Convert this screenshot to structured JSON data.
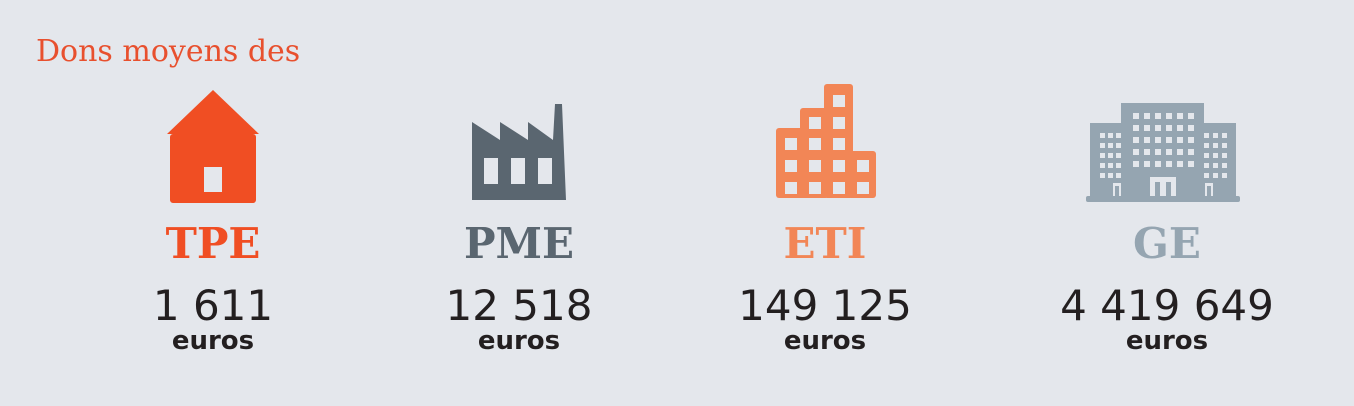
{
  "title": "Dons moyens des",
  "colors": {
    "background": "#e4e7ec",
    "title": "#e8502e",
    "tpe": "#f04e23",
    "pme": "#5a6670",
    "eti": "#f28656",
    "ge": "#95a5b1"
  },
  "categories": [
    {
      "label": "TPE",
      "value": "1 611",
      "unit": "euros",
      "icon": "house-icon",
      "color": "#f04e23"
    },
    {
      "label": "PME",
      "value": "12 518",
      "unit": "euros",
      "icon": "factory-icon",
      "color": "#5a6670"
    },
    {
      "label": "ETI",
      "value": "149 125",
      "unit": "euros",
      "icon": "building-icon",
      "color": "#f28656"
    },
    {
      "label": "GE",
      "value": "4 419 649",
      "unit": "euros",
      "icon": "office-tower-icon",
      "color": "#95a5b1"
    }
  ]
}
